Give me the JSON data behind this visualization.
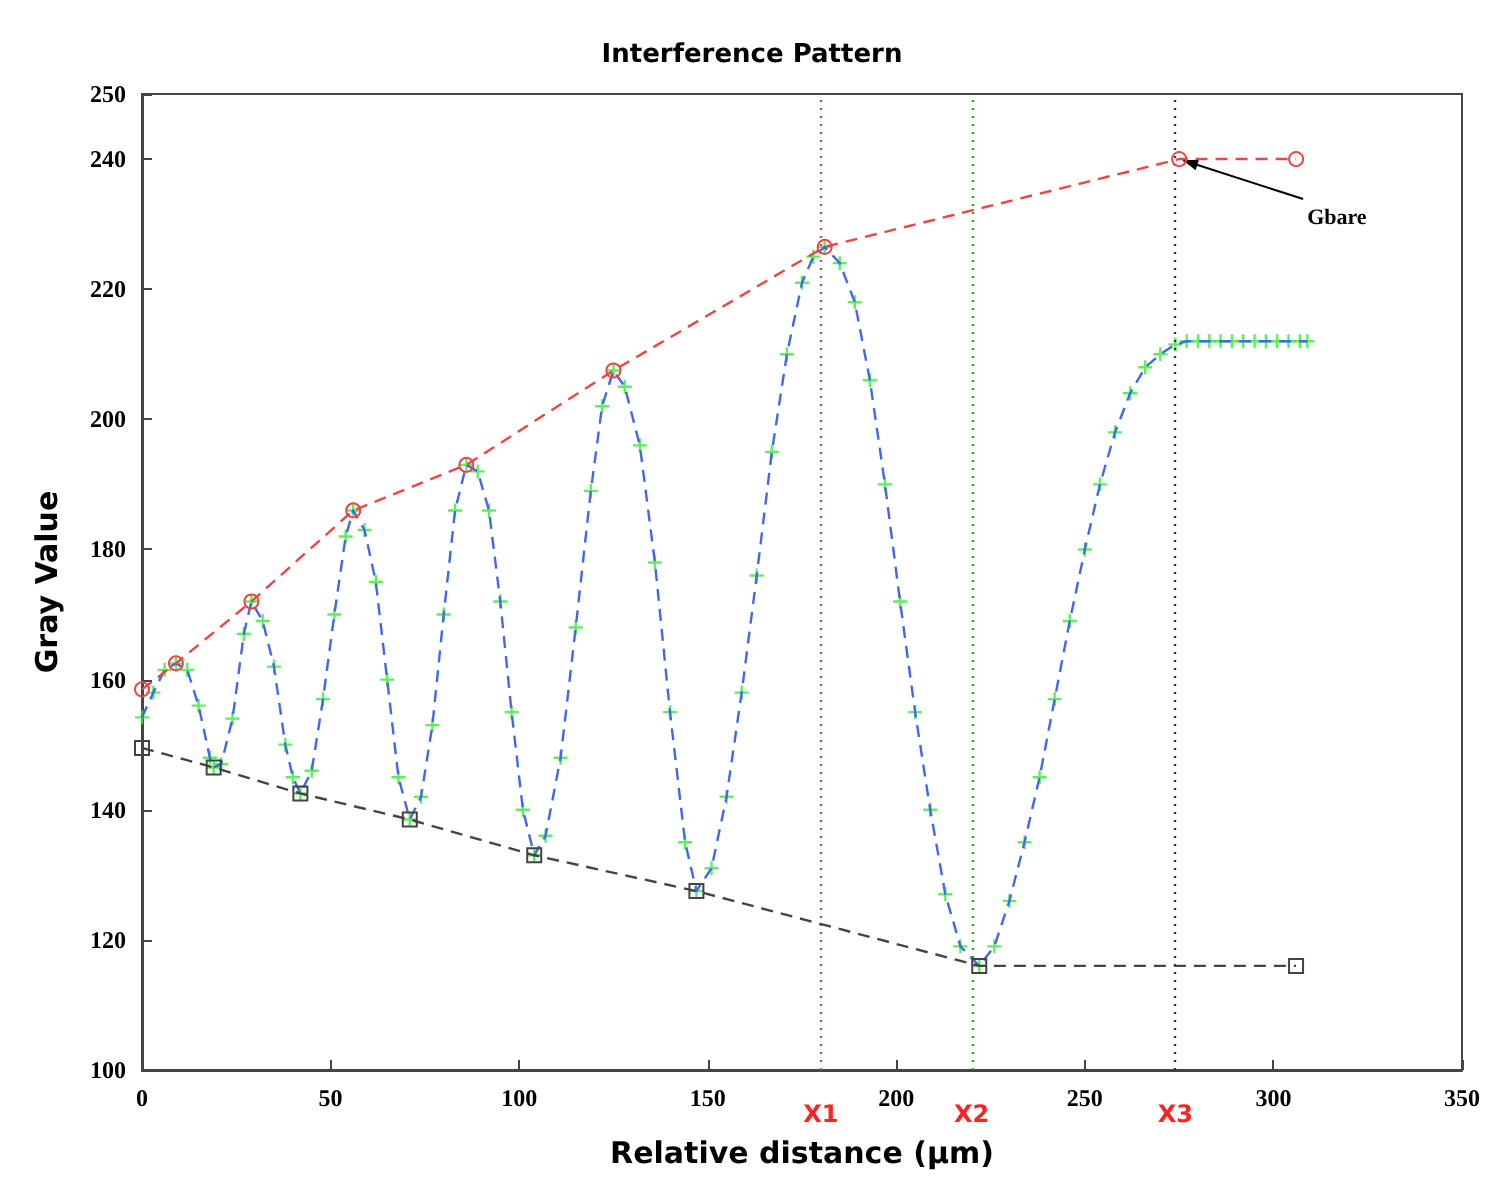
{
  "chart_data": {
    "type": "line",
    "title": "Interference Pattern",
    "xlabel": "Relative distance (μm)",
    "ylabel": "Gray Value",
    "xlim": [
      0,
      350
    ],
    "xticks": [
      0,
      50,
      100,
      150,
      200,
      250,
      300,
      350
    ],
    "ylim": [
      100,
      250
    ],
    "yticks": [
      100,
      120,
      140,
      160,
      180,
      200,
      220,
      240,
      250
    ],
    "grid": false,
    "series": [
      {
        "type": "line",
        "color": "#4466ee",
        "line_style": "dashed",
        "marker": "none",
        "x": [
          0,
          3,
          6,
          9,
          12,
          15,
          18,
          19,
          21,
          24,
          27,
          29,
          32,
          35,
          38,
          40,
          42,
          45,
          48,
          51,
          54,
          56,
          59,
          62,
          65,
          68,
          71,
          74,
          77,
          80,
          83,
          86,
          89,
          92,
          95,
          98,
          101,
          104,
          107,
          111,
          115,
          119,
          122,
          125,
          128,
          132,
          136,
          140,
          144,
          147,
          151,
          155,
          159,
          163,
          167,
          171,
          175,
          178,
          181,
          185,
          189,
          193,
          197,
          201,
          205,
          209,
          213,
          217,
          222,
          226,
          230,
          234,
          238,
          242,
          246,
          250,
          254,
          258,
          262,
          266,
          270,
          274,
          277,
          280,
          283,
          286,
          289,
          292,
          295,
          298,
          301,
          304,
          307,
          309
        ],
        "values": [
          154.2,
          158,
          161.5,
          162.5,
          161.5,
          156,
          148,
          146.5,
          147,
          154,
          167,
          172,
          169,
          162,
          150,
          145,
          142.5,
          146,
          157,
          170,
          182,
          186,
          183,
          175,
          160,
          145,
          138.5,
          142,
          153,
          170,
          186,
          193,
          192,
          186,
          172,
          155,
          140,
          133,
          136,
          148,
          168,
          189,
          202,
          207.5,
          205,
          196,
          178,
          155,
          135,
          127.5,
          131,
          142,
          158,
          176,
          195,
          210,
          221,
          225,
          226.5,
          224,
          218,
          206,
          190,
          172,
          155,
          140,
          127,
          119,
          116,
          119,
          126,
          135,
          145,
          157,
          169,
          180,
          190,
          198,
          204,
          208,
          210,
          211.5,
          212,
          212,
          212,
          212,
          212,
          212,
          212,
          212,
          212,
          212,
          212,
          212
        ]
      },
      {
        "type": "scatter",
        "color": "#33ee33",
        "marker": "cross",
        "x": [
          0,
          3,
          6,
          9,
          12,
          15,
          18,
          19,
          21,
          24,
          27,
          29,
          32,
          35,
          38,
          40,
          42,
          45,
          48,
          51,
          54,
          56,
          59,
          62,
          65,
          68,
          71,
          74,
          77,
          80,
          83,
          86,
          89,
          92,
          95,
          98,
          101,
          104,
          107,
          111,
          115,
          119,
          122,
          125,
          128,
          132,
          136,
          140,
          144,
          147,
          151,
          155,
          159,
          163,
          167,
          171,
          175,
          178,
          181,
          185,
          189,
          193,
          197,
          201,
          205,
          209,
          213,
          217,
          222,
          226,
          230,
          234,
          238,
          242,
          246,
          250,
          254,
          258,
          262,
          266,
          270,
          274,
          277,
          280,
          283,
          286,
          289,
          292,
          295,
          298,
          301,
          304,
          307,
          309
        ],
        "values": [
          154.2,
          158,
          161.5,
          162.5,
          161.5,
          156,
          148,
          146.5,
          147,
          154,
          167,
          172,
          169,
          162,
          150,
          145,
          142.5,
          146,
          157,
          170,
          182,
          186,
          183,
          175,
          160,
          145,
          138.5,
          142,
          153,
          170,
          186,
          193,
          192,
          186,
          172,
          155,
          140,
          133,
          136,
          148,
          168,
          189,
          202,
          207.5,
          205,
          196,
          178,
          155,
          135,
          127.5,
          131,
          142,
          158,
          176,
          195,
          210,
          221,
          225,
          226.5,
          224,
          218,
          206,
          190,
          172,
          155,
          140,
          127,
          119,
          116,
          119,
          126,
          135,
          145,
          157,
          169,
          180,
          190,
          198,
          204,
          208,
          210,
          211.5,
          212,
          212,
          212,
          212,
          212,
          212,
          212,
          212,
          212,
          212,
          212,
          212
        ]
      },
      {
        "type": "line",
        "color": "#ee4444",
        "line_style": "dashed",
        "marker": "circle",
        "x": [
          0,
          9,
          29,
          56,
          86,
          125,
          181,
          275,
          306
        ],
        "values": [
          158.5,
          162.5,
          172,
          186,
          193,
          207.5,
          226.5,
          240,
          240
        ]
      },
      {
        "type": "line",
        "color": "#444444",
        "line_style": "dashed",
        "marker": "square",
        "x": [
          0,
          19,
          42,
          71,
          104,
          147,
          222,
          306
        ],
        "values": [
          149.5,
          146.5,
          142.5,
          138.5,
          133,
          127.5,
          116,
          116
        ]
      }
    ],
    "ref_lines": [
      {
        "axis": "x",
        "value": 180,
        "label": "X1",
        "color": "#cc5533",
        "line_style": "dotted"
      },
      {
        "axis": "x",
        "value": 220,
        "label": "X2",
        "color": "#22aa22",
        "line_style": "dotted"
      },
      {
        "axis": "x",
        "value": 274,
        "label": "X3",
        "color": "#333333",
        "line_style": "dotted"
      }
    ],
    "annotations": [
      {
        "text": "Gbare",
        "x": 275,
        "y": 240
      }
    ]
  }
}
